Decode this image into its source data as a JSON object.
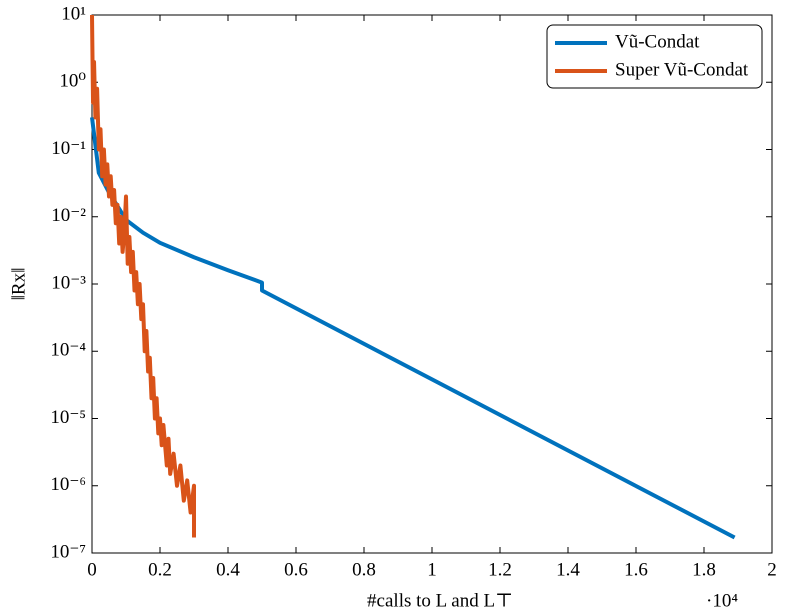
{
  "chart_data": {
    "type": "line",
    "xlabel": "#calls to L and L⊤",
    "ylabel": "‖Rx‖",
    "x_scale_label": "·10⁴",
    "log_y": true,
    "legend": "top-right",
    "xlim": [
      0,
      2
    ],
    "xticks": [
      0,
      0.2,
      0.4,
      0.6,
      0.8,
      1,
      1.2,
      1.4,
      1.6,
      1.8,
      2
    ],
    "ylim": [
      1e-07,
      10
    ],
    "yticks": [
      {
        "value": 1e-07,
        "label": "10⁻⁷"
      },
      {
        "value": 1e-06,
        "label": "10⁻⁶"
      },
      {
        "value": 1e-05,
        "label": "10⁻⁵"
      },
      {
        "value": 0.0001,
        "label": "10⁻⁴"
      },
      {
        "value": 0.001,
        "label": "10⁻³"
      },
      {
        "value": 0.01,
        "label": "10⁻²"
      },
      {
        "value": 0.1,
        "label": "10⁻¹"
      },
      {
        "value": 1,
        "label": "10⁰"
      },
      {
        "value": 10,
        "label": "10¹"
      }
    ],
    "series": [
      {
        "name": "Vũ-Condat",
        "color": "#0072bd",
        "x": [
          0,
          0.02,
          0.05,
          0.1,
          0.15,
          0.2,
          0.3,
          0.4,
          0.5,
          0.5,
          1.89
        ],
        "values": [
          0.3,
          0.045,
          0.023,
          0.009,
          0.0058,
          0.0041,
          0.0025,
          0.0016,
          0.00105,
          0.0008,
          1.7e-07
        ]
      },
      {
        "name": "Super Vũ-Condat",
        "color": "#d95319",
        "x": [
          0,
          0.003,
          0.006,
          0.01,
          0.015,
          0.02,
          0.025,
          0.03,
          0.035,
          0.04,
          0.045,
          0.05,
          0.055,
          0.06,
          0.065,
          0.07,
          0.075,
          0.08,
          0.085,
          0.09,
          0.095,
          0.1,
          0.105,
          0.11,
          0.115,
          0.12,
          0.125,
          0.13,
          0.135,
          0.14,
          0.145,
          0.15,
          0.155,
          0.16,
          0.165,
          0.17,
          0.175,
          0.18,
          0.185,
          0.19,
          0.195,
          0.2,
          0.205,
          0.21,
          0.22,
          0.225,
          0.23,
          0.24,
          0.25,
          0.26,
          0.27,
          0.28,
          0.29,
          0.3,
          0.3
        ],
        "values": [
          10,
          0.5,
          2,
          0.3,
          0.8,
          0.1,
          0.2,
          0.04,
          0.1,
          0.03,
          0.06,
          0.02,
          0.04,
          0.015,
          0.025,
          0.008,
          0.015,
          0.004,
          0.01,
          0.003,
          0.006,
          0.02,
          0.002,
          0.005,
          0.0015,
          0.003,
          0.0008,
          0.0015,
          0.0005,
          0.001,
          0.0003,
          0.0005,
          0.0001,
          0.0002,
          5e-05,
          8e-05,
          2e-05,
          4e-05,
          1e-05,
          2e-05,
          6e-06,
          1e-05,
          4e-06,
          8e-06,
          2e-06,
          5e-06,
          1.5e-06,
          3e-06,
          1e-06,
          2e-06,
          6e-07,
          1.2e-06,
          4e-07,
          1e-06,
          1.7e-07
        ]
      }
    ]
  }
}
